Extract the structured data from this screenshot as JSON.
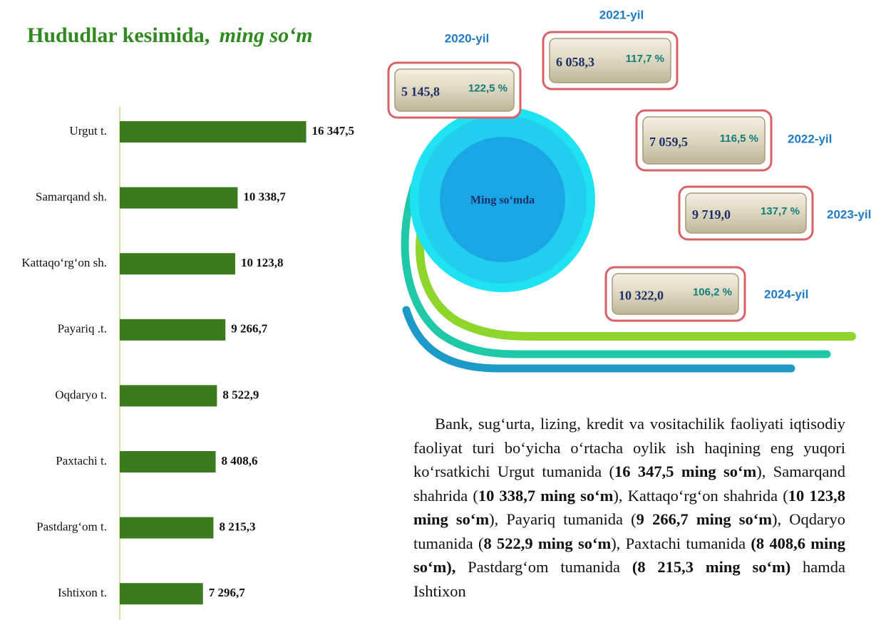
{
  "chart_data": {
    "type": "bar",
    "orientation": "horizontal",
    "title": "Hududlar kesimida,",
    "unit": "ming so‘m",
    "categories": [
      "Urgut t.",
      "Samarqand sh.",
      "Kattaqo‘rg‘on sh.",
      "Payariq .t.",
      "Oqdaryo t.",
      "Paxtachi t.",
      "Pastdarg‘om t.",
      "Ishtixon t."
    ],
    "values": [
      16347.5,
      10338.7,
      10123.8,
      9266.7,
      8522.9,
      8408.6,
      8215.3,
      7296.7
    ],
    "value_labels": [
      "16 347,5",
      "10 338,7",
      "10 123,8",
      "9 266,7",
      "8 522,9",
      "8 408,6",
      "8 215,3",
      "7 296,7"
    ],
    "color": "#3b7a1e",
    "xlim": [
      0,
      17000
    ]
  },
  "infographic": {
    "center_label": "Ming so‘mda",
    "boxes": [
      {
        "year": "2020-yil",
        "value": "5 145,8",
        "growth": "122,5 %"
      },
      {
        "year": "2021-yil",
        "value": "6 058,3",
        "growth": "117,7 %"
      },
      {
        "year": "2022-yil",
        "value": "7 059,5",
        "growth": "116,5 %"
      },
      {
        "year": "2023-yil",
        "value": "9 719,0",
        "growth": "137,7 %"
      },
      {
        "year": "2024-yil",
        "value": "10 322,0",
        "growth": "106,2 %"
      }
    ]
  },
  "paragraph": [
    {
      "text": "Bank, sug‘urta, lizing, kredit va vositachilik faoliyati iqtisodiy faoliyat turi bo‘yicha o‘rtacha oylik ish haqining eng yuqori ko‘rsatkichi Urgut tumanida (",
      "bold": false
    },
    {
      "text": "16 347,5 ming so‘m",
      "bold": true
    },
    {
      "text": "), Samarqand shahrida (",
      "bold": false
    },
    {
      "text": "10 338,7 ming so‘m",
      "bold": true
    },
    {
      "text": "), Kattaqo‘rg‘on shahrida (",
      "bold": false
    },
    {
      "text": "10 123,8 ming so‘m",
      "bold": true
    },
    {
      "text": "), Payariq tumanida (",
      "bold": false
    },
    {
      "text": "9 266,7 ming so‘m",
      "bold": true
    },
    {
      "text": "), Oqdaryo tumanida (",
      "bold": false
    },
    {
      "text": "8 522,9 ming so‘m",
      "bold": true
    },
    {
      "text": "), Paxtachi tumanida ",
      "bold": false
    },
    {
      "text": "(8 408,6 ming so‘m),",
      "bold": true
    },
    {
      "text": " Pastdarg‘om tumanida ",
      "bold": false
    },
    {
      "text": "(8 215,3 ming so‘m)",
      "bold": true
    },
    {
      "text": " hamda Ishtixon",
      "bold": false
    }
  ]
}
